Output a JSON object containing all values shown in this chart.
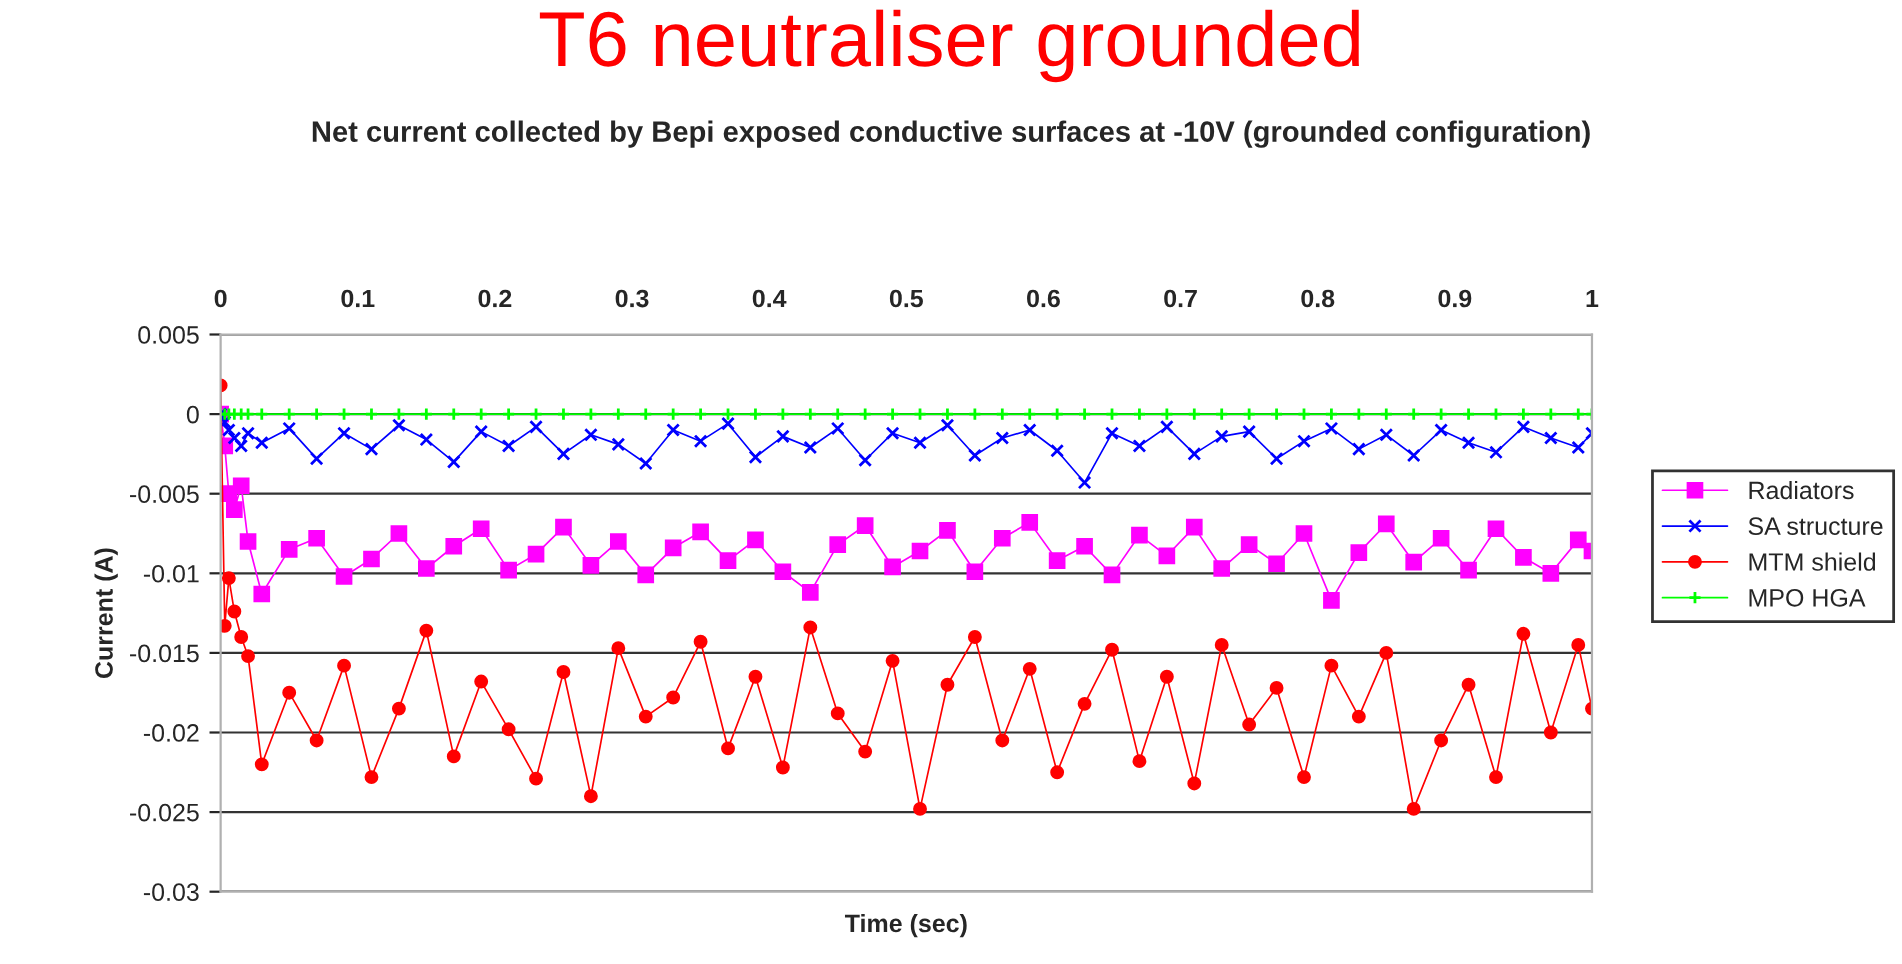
{
  "chart_data": {
    "type": "line",
    "title": "T6 neutraliser grounded",
    "subtitle": "Net current collected by Bepi exposed conductive surfaces at -10V (grounded configuration)",
    "xlabel": "Time (sec)",
    "ylabel": "Current (A)",
    "x": [
      0,
      0.003,
      0.006,
      0.01,
      0.015,
      0.02,
      0.03,
      0.05,
      0.07,
      0.09,
      0.11,
      0.13,
      0.15,
      0.17,
      0.19,
      0.21,
      0.23,
      0.25,
      0.27,
      0.29,
      0.31,
      0.33,
      0.35,
      0.37,
      0.39,
      0.41,
      0.43,
      0.45,
      0.47,
      0.49,
      0.51,
      0.53,
      0.55,
      0.57,
      0.59,
      0.61,
      0.63,
      0.65,
      0.67,
      0.69,
      0.71,
      0.73,
      0.75,
      0.77,
      0.79,
      0.81,
      0.83,
      0.85,
      0.87,
      0.89,
      0.91,
      0.93,
      0.95,
      0.97,
      0.99,
      1
    ],
    "xlim": [
      0,
      1
    ],
    "xticks": [
      0,
      0.1,
      0.2,
      0.3,
      0.4,
      0.5,
      0.6,
      0.7,
      0.8,
      0.9,
      1
    ],
    "ylim": [
      -0.03,
      0.005
    ],
    "yticks": [
      -0.03,
      -0.025,
      -0.02,
      -0.015,
      -0.01,
      -0.005,
      0,
      0.005
    ],
    "grid": "y",
    "legend": "right",
    "series": [
      {
        "name": "Radiators",
        "color": "#ff00ff",
        "marker": "square",
        "values": [
          0,
          -0.002,
          -0.005,
          -0.006,
          -0.0045,
          -0.008,
          -0.0113,
          -0.0085,
          -0.0078,
          -0.0102,
          -0.0091,
          -0.0075,
          -0.0097,
          -0.0083,
          -0.0072,
          -0.0098,
          -0.0088,
          -0.0071,
          -0.0095,
          -0.008,
          -0.0101,
          -0.0084,
          -0.0074,
          -0.0092,
          -0.0079,
          -0.0099,
          -0.0112,
          -0.0082,
          -0.007,
          -0.0096,
          -0.0086,
          -0.0073,
          -0.0099,
          -0.0078,
          -0.0068,
          -0.0092,
          -0.0083,
          -0.0101,
          -0.0076,
          -0.0089,
          -0.0071,
          -0.0097,
          -0.0082,
          -0.0094,
          -0.0075,
          -0.0117,
          -0.0087,
          -0.0069,
          -0.0093,
          -0.0078,
          -0.0098,
          -0.0072,
          -0.009,
          -0.01,
          -0.0079,
          -0.0086
        ]
      },
      {
        "name": "SA structure",
        "color": "#0000ff",
        "marker": "cross",
        "values": [
          0,
          -0.0005,
          -0.001,
          -0.0015,
          -0.002,
          -0.0012,
          -0.0018,
          -0.0009,
          -0.0028,
          -0.0012,
          -0.0022,
          -0.0007,
          -0.0016,
          -0.003,
          -0.0011,
          -0.002,
          -0.0008,
          -0.0025,
          -0.0013,
          -0.0019,
          -0.0031,
          -0.001,
          -0.0017,
          -0.0006,
          -0.0027,
          -0.0014,
          -0.0021,
          -0.0009,
          -0.0029,
          -0.0012,
          -0.0018,
          -0.0007,
          -0.0026,
          -0.0015,
          -0.001,
          -0.0023,
          -0.0043,
          -0.0012,
          -0.002,
          -0.0008,
          -0.0025,
          -0.0014,
          -0.0011,
          -0.0028,
          -0.0017,
          -0.0009,
          -0.0022,
          -0.0013,
          -0.0026,
          -0.001,
          -0.0018,
          -0.0024,
          -0.0008,
          -0.0015,
          -0.0021,
          -0.0012
        ]
      },
      {
        "name": "MTM shield",
        "color": "#ff0000",
        "marker": "circle",
        "values": [
          0.0018,
          -0.0133,
          -0.0103,
          -0.0124,
          -0.014,
          -0.0152,
          -0.022,
          -0.0175,
          -0.0205,
          -0.0158,
          -0.0228,
          -0.0185,
          -0.0136,
          -0.0215,
          -0.0168,
          -0.0198,
          -0.0229,
          -0.0162,
          -0.024,
          -0.0147,
          -0.019,
          -0.0178,
          -0.0143,
          -0.021,
          -0.0165,
          -0.0222,
          -0.0134,
          -0.0188,
          -0.0212,
          -0.0155,
          -0.0248,
          -0.017,
          -0.014,
          -0.0205,
          -0.016,
          -0.0225,
          -0.0182,
          -0.0148,
          -0.0218,
          -0.0165,
          -0.0232,
          -0.0145,
          -0.0195,
          -0.0172,
          -0.0228,
          -0.0158,
          -0.019,
          -0.015,
          -0.0248,
          -0.0205,
          -0.017,
          -0.0228,
          -0.0138,
          -0.02,
          -0.0145,
          -0.0185
        ]
      },
      {
        "name": "MPO HGA",
        "color": "#00ff00",
        "marker": "plus",
        "values": [
          0,
          0,
          0,
          0,
          0,
          0,
          0,
          0,
          0,
          0,
          0,
          0,
          0,
          0,
          0,
          0,
          0,
          0,
          0,
          0,
          0,
          0,
          0,
          0,
          0,
          0,
          0,
          0,
          0,
          0,
          0,
          0,
          0,
          0,
          0,
          0,
          0,
          0,
          0,
          0,
          0,
          0,
          0,
          0,
          0,
          0,
          0,
          0,
          0,
          0,
          0,
          0,
          0,
          0,
          0,
          0
        ]
      }
    ]
  }
}
